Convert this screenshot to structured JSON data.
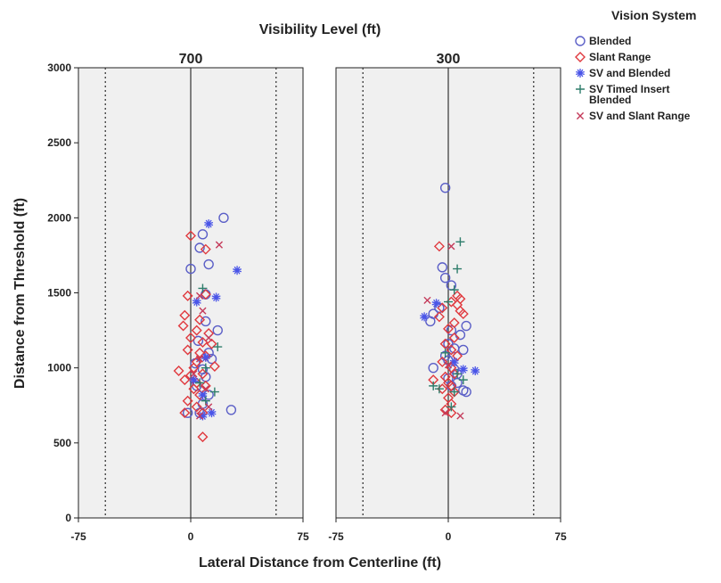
{
  "chart_data": {
    "type": "scatter",
    "title": "Visibility Level (ft)",
    "xlabel": "Lateral Distance from Centerline (ft)",
    "ylabel": "Distance from Threshold (ft)",
    "xlim": [
      -75,
      75
    ],
    "ylim": [
      0,
      3000
    ],
    "x_ticks": [
      "-75",
      "0",
      "75"
    ],
    "y_ticks": [
      "0",
      "500",
      "1000",
      "1500",
      "2000",
      "2500",
      "3000"
    ],
    "reference_lines": {
      "x": [
        -57,
        0,
        57
      ],
      "style": [
        "dotted",
        "solid",
        "dotted"
      ]
    },
    "legend": {
      "title": "Vision System",
      "position": "right",
      "entries": [
        {
          "label": "Blended",
          "marker": "circle",
          "color": "#5b5fc7"
        },
        {
          "label": "Slant Range",
          "marker": "diamond",
          "color": "#e0393e"
        },
        {
          "label": "SV and Blended",
          "marker": "star",
          "color": "#4a55e8"
        },
        {
          "label": "SV Timed Insert Blended",
          "marker": "plus",
          "color": "#2e7d6b"
        },
        {
          "label": "SV and Slant Range",
          "marker": "x",
          "color": "#c43a5a"
        }
      ]
    },
    "panels": [
      {
        "label": "700",
        "series": [
          {
            "name": "Blended",
            "points": [
              [
                22,
                2000
              ],
              [
                8,
                1890
              ],
              [
                6,
                1800
              ],
              [
                12,
                1690
              ],
              [
                0,
                1660
              ],
              [
                10,
                1490
              ],
              [
                10,
                1310
              ],
              [
                18,
                1250
              ],
              [
                5,
                1180
              ],
              [
                12,
                1100
              ],
              [
                14,
                1060
              ],
              [
                3,
                1030
              ],
              [
                8,
                990
              ],
              [
                10,
                940
              ],
              [
                4,
                880
              ],
              [
                12,
                820
              ],
              [
                8,
                760
              ],
              [
                6,
                700
              ],
              [
                27,
                720
              ],
              [
                -2,
                700
              ]
            ]
          },
          {
            "name": "Slant Range",
            "points": [
              [
                0,
                1880
              ],
              [
                10,
                1790
              ],
              [
                -2,
                1480
              ],
              [
                10,
                1490
              ],
              [
                -4,
                1350
              ],
              [
                6,
                1320
              ],
              [
                -5,
                1280
              ],
              [
                4,
                1250
              ],
              [
                12,
                1230
              ],
              [
                0,
                1200
              ],
              [
                8,
                1170
              ],
              [
                14,
                1160
              ],
              [
                -2,
                1120
              ],
              [
                6,
                1100
              ],
              [
                10,
                1080
              ],
              [
                4,
                1040
              ],
              [
                -8,
                980
              ],
              [
                2,
                1000
              ],
              [
                16,
                1010
              ],
              [
                0,
                950
              ],
              [
                8,
                960
              ],
              [
                -4,
                920
              ],
              [
                4,
                900
              ],
              [
                10,
                880
              ],
              [
                2,
                860
              ],
              [
                6,
                820
              ],
              [
                -2,
                780
              ],
              [
                4,
                740
              ],
              [
                -4,
                700
              ],
              [
                8,
                700
              ],
              [
                8,
                540
              ]
            ]
          },
          {
            "name": "SV and Blended",
            "points": [
              [
                12,
                1960
              ],
              [
                31,
                1650
              ],
              [
                17,
                1470
              ],
              [
                4,
                1440
              ],
              [
                10,
                1070
              ],
              [
                2,
                920
              ],
              [
                8,
                820
              ],
              [
                14,
                700
              ],
              [
                8,
                680
              ]
            ]
          },
          {
            "name": "SV Timed Insert Blended",
            "points": [
              [
                8,
                1530
              ],
              [
                18,
                1140
              ],
              [
                10,
                1000
              ],
              [
                6,
                900
              ],
              [
                16,
                840
              ],
              [
                10,
                780
              ]
            ]
          },
          {
            "name": "SV and Slant Range",
            "points": [
              [
                19,
                1820
              ],
              [
                6,
                1480
              ],
              [
                8,
                1380
              ],
              [
                12,
                1200
              ],
              [
                6,
                1060
              ],
              [
                2,
                960
              ],
              [
                10,
                860
              ],
              [
                12,
                740
              ],
              [
                6,
                680
              ]
            ]
          }
        ]
      },
      {
        "label": "300",
        "series": [
          {
            "name": "Blended",
            "points": [
              [
                -2,
                2200
              ],
              [
                -4,
                1670
              ],
              [
                -2,
                1600
              ],
              [
                2,
                1550
              ],
              [
                -6,
                1400
              ],
              [
                -10,
                1360
              ],
              [
                -12,
                1310
              ],
              [
                12,
                1280
              ],
              [
                2,
                1250
              ],
              [
                8,
                1220
              ],
              [
                0,
                1160
              ],
              [
                4,
                1130
              ],
              [
                10,
                1120
              ],
              [
                -2,
                1080
              ],
              [
                0,
                1050
              ],
              [
                -10,
                1000
              ],
              [
                4,
                990
              ],
              [
                6,
                960
              ],
              [
                0,
                930
              ],
              [
                6,
                900
              ],
              [
                2,
                880
              ],
              [
                10,
                850
              ],
              [
                12,
                840
              ]
            ]
          },
          {
            "name": "Slant Range",
            "points": [
              [
                -6,
                1810
              ],
              [
                6,
                1480
              ],
              [
                8,
                1460
              ],
              [
                2,
                1440
              ],
              [
                6,
                1420
              ],
              [
                -4,
                1400
              ],
              [
                8,
                1380
              ],
              [
                10,
                1360
              ],
              [
                -6,
                1340
              ],
              [
                4,
                1300
              ],
              [
                0,
                1260
              ],
              [
                4,
                1200
              ],
              [
                -2,
                1160
              ],
              [
                2,
                1120
              ],
              [
                6,
                1080
              ],
              [
                -4,
                1040
              ],
              [
                2,
                1000
              ],
              [
                4,
                960
              ],
              [
                -2,
                940
              ],
              [
                0,
                900
              ],
              [
                -10,
                920
              ],
              [
                2,
                880
              ],
              [
                -4,
                860
              ],
              [
                4,
                840
              ],
              [
                0,
                800
              ],
              [
                2,
                760
              ],
              [
                -2,
                720
              ],
              [
                2,
                700
              ]
            ]
          },
          {
            "name": "SV and Blended",
            "points": [
              [
                -8,
                1430
              ],
              [
                -16,
                1340
              ],
              [
                18,
                980
              ],
              [
                10,
                990
              ],
              [
                4,
                1040
              ]
            ]
          },
          {
            "name": "SV Timed Insert Blended",
            "points": [
              [
                8,
                1840
              ],
              [
                6,
                1660
              ],
              [
                4,
                1520
              ],
              [
                0,
                1440
              ],
              [
                -2,
                1100
              ],
              [
                6,
                960
              ],
              [
                10,
                920
              ],
              [
                -10,
                880
              ],
              [
                -6,
                860
              ],
              [
                4,
                840
              ],
              [
                2,
                740
              ]
            ]
          },
          {
            "name": "SV and Slant Range",
            "points": [
              [
                2,
                1810
              ],
              [
                -14,
                1450
              ],
              [
                0,
                1020
              ],
              [
                -2,
                700
              ],
              [
                8,
                680
              ]
            ]
          }
        ]
      }
    ]
  }
}
